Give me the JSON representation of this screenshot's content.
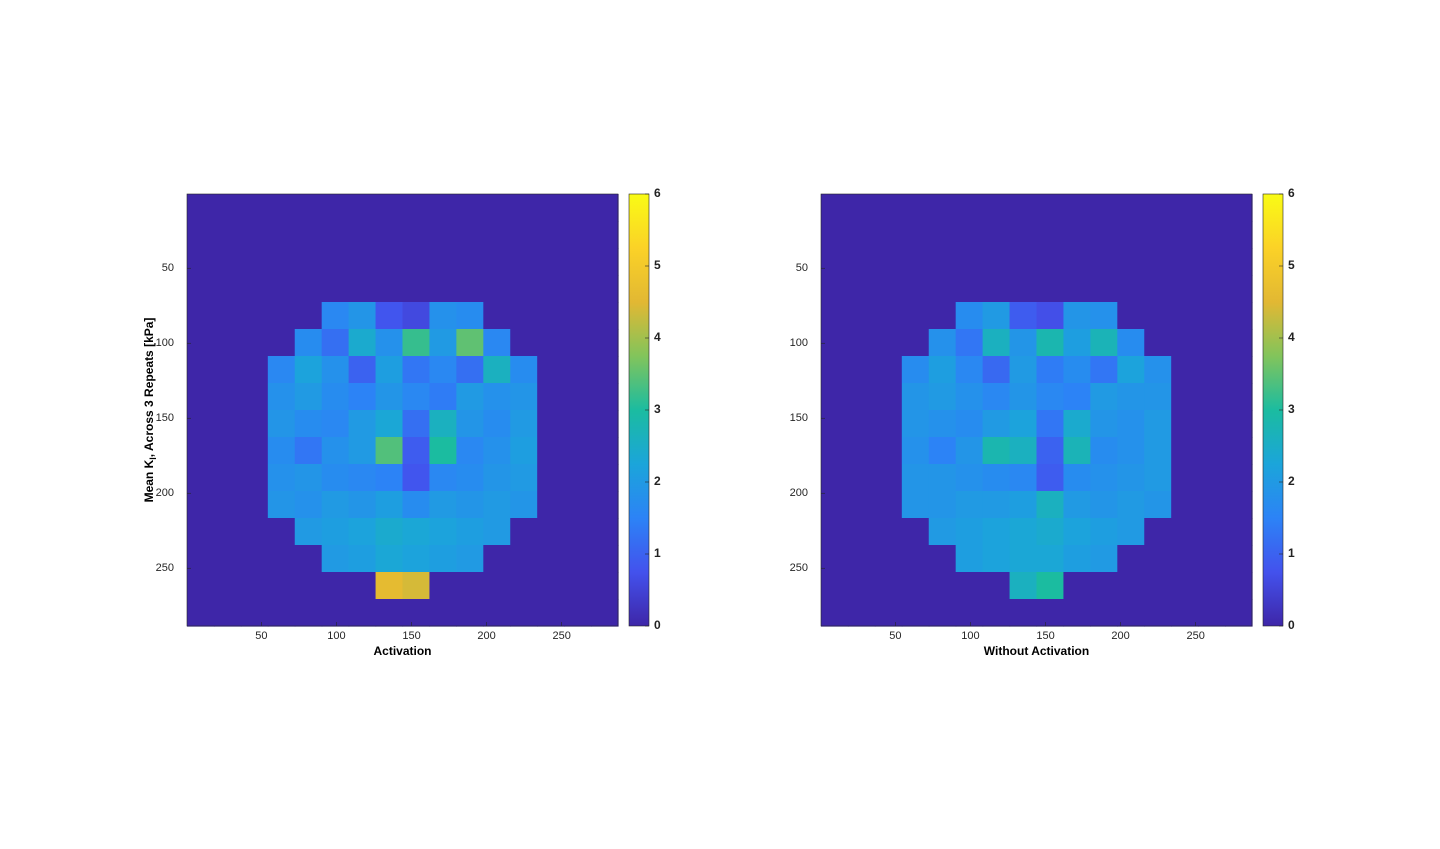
{
  "chart_data": [
    {
      "type": "heatmap",
      "xlabel": "Activation",
      "ylabel": [
        "Mean K",
        "l",
        ", Across 3 Repeats [kPa]"
      ],
      "xlim": [
        0.5,
        287.5
      ],
      "ylim": [
        0.5,
        288.5
      ],
      "xticks": [
        50,
        100,
        150,
        200,
        250
      ],
      "yticks": [
        50,
        100,
        150,
        200,
        250
      ],
      "clim": [
        0,
        6
      ],
      "cticks": [
        0,
        1,
        2,
        3,
        4,
        5,
        6
      ],
      "colormap": [
        "#3e26a8",
        "#4352ed",
        "#2c83f6",
        "#1ba5da",
        "#1bbca0",
        "#82c45b",
        "#e2b833",
        "#fbd227",
        "#f9fb15"
      ],
      "z": [
        [
          0,
          0,
          0,
          0,
          0,
          0,
          0,
          0,
          0,
          0,
          0,
          0,
          0,
          0,
          0,
          0
        ],
        [
          0,
          0,
          0,
          0,
          0,
          0,
          0,
          0,
          0,
          0,
          0,
          0,
          0,
          0,
          0,
          0
        ],
        [
          0,
          0,
          0,
          0,
          0,
          0,
          0,
          0,
          0,
          0,
          0,
          0,
          0,
          0,
          0,
          0
        ],
        [
          0,
          0,
          0,
          0,
          0,
          0,
          0,
          0,
          0,
          0,
          0,
          0,
          0,
          0,
          0,
          0
        ],
        [
          0,
          0,
          0,
          0,
          0,
          1.6,
          1.9,
          0.8,
          0.6,
          1.8,
          1.7,
          0,
          0,
          0,
          0,
          0
        ],
        [
          0,
          0,
          0,
          0,
          1.7,
          1.2,
          2.4,
          1.8,
          3.2,
          2.0,
          3.5,
          1.6,
          0,
          0,
          0,
          0
        ],
        [
          0,
          0,
          0,
          1.6,
          2.2,
          1.8,
          1.0,
          2.1,
          1.3,
          1.6,
          1.2,
          2.6,
          1.7,
          0,
          0,
          0
        ],
        [
          0,
          0,
          0,
          1.8,
          2.0,
          1.7,
          1.5,
          1.9,
          1.6,
          1.4,
          2.0,
          1.8,
          1.9,
          0,
          0,
          0
        ],
        [
          0,
          0,
          0,
          1.9,
          1.7,
          1.6,
          2.0,
          2.3,
          1.2,
          2.6,
          1.9,
          1.7,
          2.0,
          0,
          0,
          0
        ],
        [
          0,
          0,
          0,
          1.7,
          1.3,
          1.8,
          2.0,
          3.4,
          0.9,
          3.0,
          1.6,
          1.8,
          2.1,
          0,
          0,
          0
        ],
        [
          0,
          0,
          0,
          1.8,
          1.9,
          1.7,
          1.6,
          1.5,
          0.8,
          1.6,
          1.7,
          1.9,
          2.0,
          0,
          0,
          0
        ],
        [
          0,
          0,
          0,
          1.9,
          1.8,
          2.0,
          1.9,
          2.1,
          1.7,
          2.0,
          1.9,
          2.0,
          1.9,
          0,
          0,
          0
        ],
        [
          0,
          0,
          0,
          0,
          2.0,
          2.1,
          2.2,
          2.4,
          2.3,
          2.2,
          2.1,
          2.0,
          0,
          0,
          0,
          0
        ],
        [
          0,
          0,
          0,
          0,
          0,
          2.0,
          2.1,
          2.3,
          2.2,
          2.1,
          2.0,
          0,
          0,
          0,
          0,
          0
        ],
        [
          0,
          0,
          0,
          0,
          0,
          0,
          0,
          4.6,
          4.4,
          0,
          0,
          0,
          0,
          0,
          0,
          0
        ],
        [
          0,
          0,
          0,
          0,
          0,
          0,
          0,
          0,
          0,
          0,
          0,
          0,
          0,
          0,
          0,
          0
        ]
      ]
    },
    {
      "type": "heatmap",
      "xlabel": "Without Activation",
      "xlim": [
        0.5,
        287.5
      ],
      "ylim": [
        0.5,
        288.5
      ],
      "xticks": [
        50,
        100,
        150,
        200,
        250
      ],
      "yticks": [
        50,
        100,
        150,
        200,
        250
      ],
      "clim": [
        0,
        6
      ],
      "cticks": [
        0,
        1,
        2,
        3,
        4,
        5,
        6
      ],
      "colormap": [
        "#3e26a8",
        "#4352ed",
        "#2c83f6",
        "#1ba5da",
        "#1bbca0",
        "#82c45b",
        "#e2b833",
        "#fbd227",
        "#f9fb15"
      ],
      "z": [
        [
          0,
          0,
          0,
          0,
          0,
          0,
          0,
          0,
          0,
          0,
          0,
          0,
          0,
          0,
          0,
          0
        ],
        [
          0,
          0,
          0,
          0,
          0,
          0,
          0,
          0,
          0,
          0,
          0,
          0,
          0,
          0,
          0,
          0
        ],
        [
          0,
          0,
          0,
          0,
          0,
          0,
          0,
          0,
          0,
          0,
          0,
          0,
          0,
          0,
          0,
          0
        ],
        [
          0,
          0,
          0,
          0,
          0,
          0,
          0,
          0,
          0,
          0,
          0,
          0,
          0,
          0,
          0,
          0
        ],
        [
          0,
          0,
          0,
          0,
          0,
          1.7,
          2.0,
          0.9,
          0.7,
          1.9,
          1.8,
          0,
          0,
          0,
          0,
          0
        ],
        [
          0,
          0,
          0,
          0,
          1.8,
          1.3,
          2.6,
          1.9,
          2.8,
          2.1,
          2.7,
          1.7,
          0,
          0,
          0,
          0
        ],
        [
          0,
          0,
          0,
          1.7,
          2.1,
          1.6,
          1.1,
          2.0,
          1.4,
          1.7,
          1.3,
          2.2,
          1.8,
          0,
          0,
          0
        ],
        [
          0,
          0,
          0,
          1.9,
          2.0,
          1.8,
          1.6,
          1.9,
          1.6,
          1.5,
          2.0,
          1.9,
          1.9,
          0,
          0,
          0
        ],
        [
          0,
          0,
          0,
          1.9,
          1.8,
          1.7,
          2.0,
          2.2,
          1.3,
          2.4,
          1.9,
          1.8,
          2.0,
          0,
          0,
          0
        ],
        [
          0,
          0,
          0,
          1.8,
          1.5,
          1.9,
          2.8,
          2.6,
          1.0,
          2.7,
          1.7,
          1.8,
          2.0,
          0,
          0,
          0
        ],
        [
          0,
          0,
          0,
          1.9,
          1.9,
          1.8,
          1.7,
          1.6,
          0.9,
          1.7,
          1.8,
          1.9,
          2.0,
          0,
          0,
          0
        ],
        [
          0,
          0,
          0,
          1.9,
          1.9,
          2.0,
          2.0,
          2.1,
          2.6,
          2.0,
          1.9,
          2.0,
          1.9,
          0,
          0,
          0
        ],
        [
          0,
          0,
          0,
          0,
          2.0,
          2.1,
          2.2,
          2.3,
          2.4,
          2.2,
          2.1,
          2.0,
          0,
          0,
          0,
          0
        ],
        [
          0,
          0,
          0,
          0,
          0,
          2.1,
          2.2,
          2.3,
          2.3,
          2.1,
          2.0,
          0,
          0,
          0,
          0,
          0
        ],
        [
          0,
          0,
          0,
          0,
          0,
          0,
          0,
          2.6,
          3.0,
          0,
          0,
          0,
          0,
          0,
          0,
          0
        ],
        [
          0,
          0,
          0,
          0,
          0,
          0,
          0,
          0,
          0,
          0,
          0,
          0,
          0,
          0,
          0,
          0
        ]
      ]
    }
  ]
}
